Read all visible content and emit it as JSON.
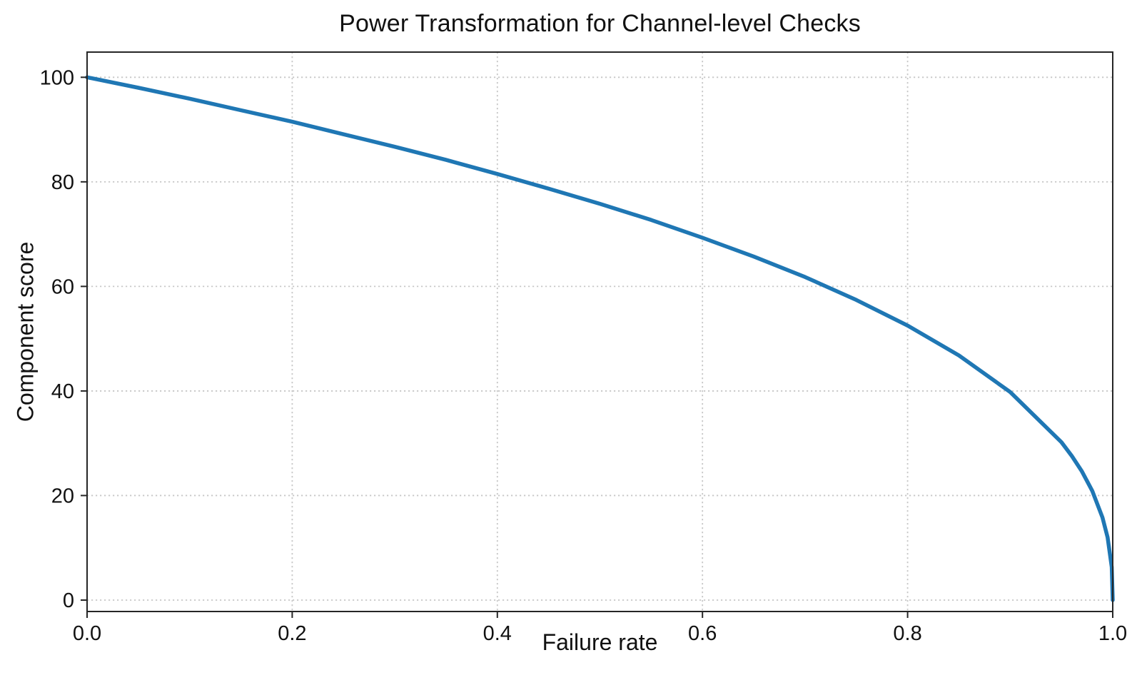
{
  "chart_data": {
    "type": "line",
    "title": "Power Transformation for Channel-level Checks",
    "xlabel": "Failure rate",
    "ylabel": "Component score",
    "xlim": [
      0,
      1
    ],
    "ylim": [
      0,
      100
    ],
    "grid": "dotted",
    "legend": "none",
    "x_ticks": {
      "values": [
        0,
        0.2,
        0.4,
        0.6,
        0.8,
        1.0
      ],
      "labels": [
        "0.0",
        "0.2",
        "0.4",
        "0.6",
        "0.8",
        "1.0"
      ]
    },
    "y_ticks": {
      "values": [
        0,
        20,
        40,
        60,
        80,
        100
      ],
      "labels": [
        "0",
        "20",
        "40",
        "60",
        "80",
        "100"
      ]
    },
    "series": [
      {
        "name": "component-score-curve",
        "formula": "y = 100 * (1 - x)^0.4",
        "x": [
          0,
          0.05,
          0.1,
          0.15,
          0.2,
          0.25,
          0.3,
          0.35,
          0.4,
          0.45,
          0.5,
          0.55,
          0.6,
          0.65,
          0.7,
          0.75,
          0.8,
          0.85,
          0.9,
          0.95,
          0.96,
          0.97,
          0.98,
          0.99,
          0.995,
          0.999,
          1.0
        ],
        "y": [
          100,
          98.0,
          95.9,
          93.7,
          91.5,
          89.1,
          86.7,
          84.2,
          81.5,
          78.7,
          75.8,
          72.7,
          69.3,
          65.7,
          61.8,
          57.4,
          52.5,
          46.8,
          39.8,
          30.2,
          27.6,
          24.6,
          20.9,
          15.8,
          12.0,
          6.3,
          0
        ]
      }
    ],
    "colors": {
      "line": "#1f77b4",
      "grid": "#c8c8c8",
      "spine": "#262626",
      "text": "#111111"
    }
  }
}
